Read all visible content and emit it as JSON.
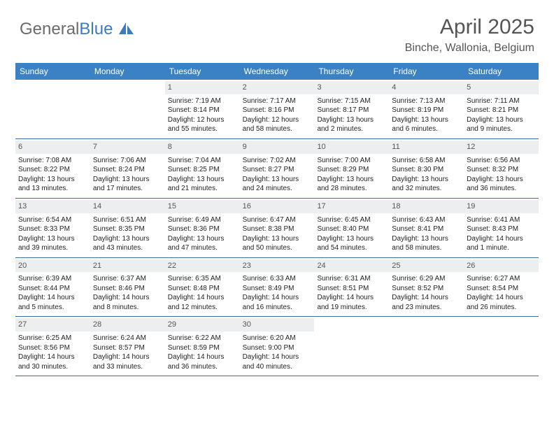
{
  "logo": {
    "part1": "General",
    "part2": "Blue"
  },
  "header": {
    "title": "April 2025",
    "subtitle": "Binche, Wallonia, Belgium"
  },
  "colors": {
    "header_bg": "#3b82c4",
    "header_text": "#ffffff",
    "daynum_bg": "#eceef0",
    "border": "#3b6ea0",
    "text": "#333333",
    "logo_gray": "#6b6b6b",
    "logo_blue": "#3b7bbf"
  },
  "weekdays": [
    "Sunday",
    "Monday",
    "Tuesday",
    "Wednesday",
    "Thursday",
    "Friday",
    "Saturday"
  ],
  "weeks": [
    [
      {
        "num": ""
      },
      {
        "num": ""
      },
      {
        "num": "1",
        "sunrise": "7:19 AM",
        "sunset": "8:14 PM",
        "daylight": "12 hours and 55 minutes."
      },
      {
        "num": "2",
        "sunrise": "7:17 AM",
        "sunset": "8:16 PM",
        "daylight": "12 hours and 58 minutes."
      },
      {
        "num": "3",
        "sunrise": "7:15 AM",
        "sunset": "8:17 PM",
        "daylight": "13 hours and 2 minutes."
      },
      {
        "num": "4",
        "sunrise": "7:13 AM",
        "sunset": "8:19 PM",
        "daylight": "13 hours and 6 minutes."
      },
      {
        "num": "5",
        "sunrise": "7:11 AM",
        "sunset": "8:21 PM",
        "daylight": "13 hours and 9 minutes."
      }
    ],
    [
      {
        "num": "6",
        "sunrise": "7:08 AM",
        "sunset": "8:22 PM",
        "daylight": "13 hours and 13 minutes."
      },
      {
        "num": "7",
        "sunrise": "7:06 AM",
        "sunset": "8:24 PM",
        "daylight": "13 hours and 17 minutes."
      },
      {
        "num": "8",
        "sunrise": "7:04 AM",
        "sunset": "8:25 PM",
        "daylight": "13 hours and 21 minutes."
      },
      {
        "num": "9",
        "sunrise": "7:02 AM",
        "sunset": "8:27 PM",
        "daylight": "13 hours and 24 minutes."
      },
      {
        "num": "10",
        "sunrise": "7:00 AM",
        "sunset": "8:29 PM",
        "daylight": "13 hours and 28 minutes."
      },
      {
        "num": "11",
        "sunrise": "6:58 AM",
        "sunset": "8:30 PM",
        "daylight": "13 hours and 32 minutes."
      },
      {
        "num": "12",
        "sunrise": "6:56 AM",
        "sunset": "8:32 PM",
        "daylight": "13 hours and 36 minutes."
      }
    ],
    [
      {
        "num": "13",
        "sunrise": "6:54 AM",
        "sunset": "8:33 PM",
        "daylight": "13 hours and 39 minutes."
      },
      {
        "num": "14",
        "sunrise": "6:51 AM",
        "sunset": "8:35 PM",
        "daylight": "13 hours and 43 minutes."
      },
      {
        "num": "15",
        "sunrise": "6:49 AM",
        "sunset": "8:36 PM",
        "daylight": "13 hours and 47 minutes."
      },
      {
        "num": "16",
        "sunrise": "6:47 AM",
        "sunset": "8:38 PM",
        "daylight": "13 hours and 50 minutes."
      },
      {
        "num": "17",
        "sunrise": "6:45 AM",
        "sunset": "8:40 PM",
        "daylight": "13 hours and 54 minutes."
      },
      {
        "num": "18",
        "sunrise": "6:43 AM",
        "sunset": "8:41 PM",
        "daylight": "13 hours and 58 minutes."
      },
      {
        "num": "19",
        "sunrise": "6:41 AM",
        "sunset": "8:43 PM",
        "daylight": "14 hours and 1 minute."
      }
    ],
    [
      {
        "num": "20",
        "sunrise": "6:39 AM",
        "sunset": "8:44 PM",
        "daylight": "14 hours and 5 minutes."
      },
      {
        "num": "21",
        "sunrise": "6:37 AM",
        "sunset": "8:46 PM",
        "daylight": "14 hours and 8 minutes."
      },
      {
        "num": "22",
        "sunrise": "6:35 AM",
        "sunset": "8:48 PM",
        "daylight": "14 hours and 12 minutes."
      },
      {
        "num": "23",
        "sunrise": "6:33 AM",
        "sunset": "8:49 PM",
        "daylight": "14 hours and 16 minutes."
      },
      {
        "num": "24",
        "sunrise": "6:31 AM",
        "sunset": "8:51 PM",
        "daylight": "14 hours and 19 minutes."
      },
      {
        "num": "25",
        "sunrise": "6:29 AM",
        "sunset": "8:52 PM",
        "daylight": "14 hours and 23 minutes."
      },
      {
        "num": "26",
        "sunrise": "6:27 AM",
        "sunset": "8:54 PM",
        "daylight": "14 hours and 26 minutes."
      }
    ],
    [
      {
        "num": "27",
        "sunrise": "6:25 AM",
        "sunset": "8:56 PM",
        "daylight": "14 hours and 30 minutes."
      },
      {
        "num": "28",
        "sunrise": "6:24 AM",
        "sunset": "8:57 PM",
        "daylight": "14 hours and 33 minutes."
      },
      {
        "num": "29",
        "sunrise": "6:22 AM",
        "sunset": "8:59 PM",
        "daylight": "14 hours and 36 minutes."
      },
      {
        "num": "30",
        "sunrise": "6:20 AM",
        "sunset": "9:00 PM",
        "daylight": "14 hours and 40 minutes."
      },
      {
        "num": ""
      },
      {
        "num": ""
      },
      {
        "num": ""
      }
    ]
  ],
  "labels": {
    "sunrise": "Sunrise:",
    "sunset": "Sunset:",
    "daylight": "Daylight:"
  }
}
